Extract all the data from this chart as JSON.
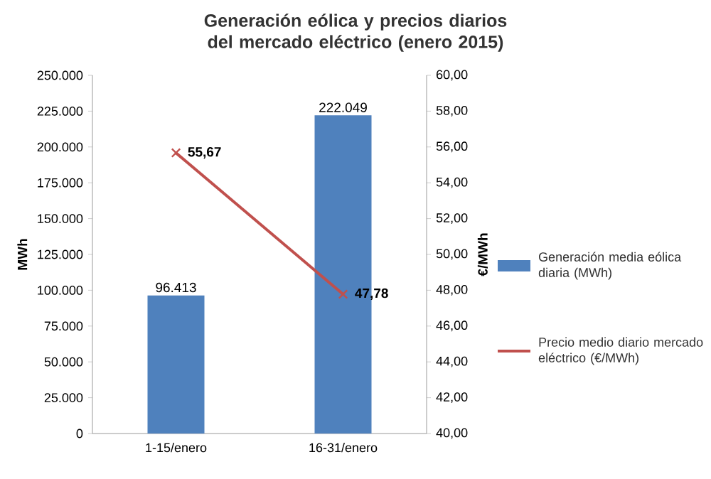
{
  "chart_data": {
    "type": "bar",
    "title": "Generación eólica y precios diarios del mercado eléctrico (enero 2015)",
    "categories": [
      "1-15/enero",
      "16-31/enero"
    ],
    "ylabel": "MWh",
    "y2label": "€/MWh",
    "ylim": [
      0,
      250000
    ],
    "yticks": [
      {
        "value": 0,
        "label": "0"
      },
      {
        "value": 25000,
        "label": "25.000"
      },
      {
        "value": 50000,
        "label": "50.000"
      },
      {
        "value": 75000,
        "label": "75.000"
      },
      {
        "value": 100000,
        "label": "100.000"
      },
      {
        "value": 125000,
        "label": "125.000"
      },
      {
        "value": 150000,
        "label": "150.000"
      },
      {
        "value": 175000,
        "label": "175.000"
      },
      {
        "value": 200000,
        "label": "200.000"
      },
      {
        "value": 225000,
        "label": "225.000"
      },
      {
        "value": 250000,
        "label": "250.000"
      }
    ],
    "y2lim": [
      40,
      60
    ],
    "y2ticks": [
      {
        "value": 40,
        "label": "40,00"
      },
      {
        "value": 42,
        "label": "42,00"
      },
      {
        "value": 44,
        "label": "44,00"
      },
      {
        "value": 46,
        "label": "46,00"
      },
      {
        "value": 48,
        "label": "48,00"
      },
      {
        "value": 50,
        "label": "50,00"
      },
      {
        "value": 52,
        "label": "52,00"
      },
      {
        "value": 54,
        "label": "54,00"
      },
      {
        "value": 56,
        "label": "56,00"
      },
      {
        "value": 58,
        "label": "58,00"
      },
      {
        "value": 60,
        "label": "60,00"
      }
    ],
    "series": [
      {
        "name": "Generación media eólica diaria (MWh)",
        "color": "#4f81bd",
        "values": [
          96413,
          222049
        ],
        "value_labels": [
          "96.413",
          "222.049"
        ]
      },
      {
        "name": "Precio medio diario mercado eléctrico (€/MWh)",
        "type": "line",
        "axis": "y2",
        "color": "#c0504d",
        "marker": "cross",
        "values": [
          55.67,
          47.78
        ],
        "value_labels": [
          "55,67",
          "47,78"
        ]
      }
    ],
    "legend": "right"
  }
}
